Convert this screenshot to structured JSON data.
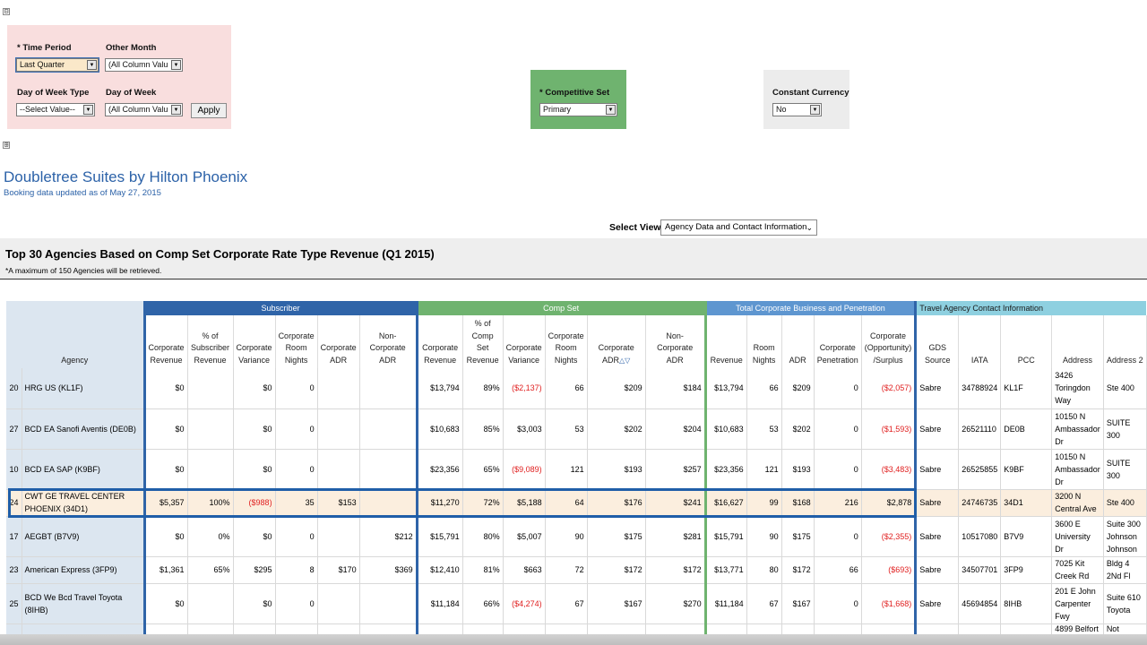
{
  "filters": {
    "time_period": {
      "label": "* Time Period",
      "value": "Last Quarter"
    },
    "other_month": {
      "label": "Other Month",
      "value": "(All Column Valu"
    },
    "dow_type": {
      "label": "Day of Week Type",
      "value": "--Select Value--"
    },
    "dow": {
      "label": "Day of Week",
      "value": "(All Column Valu"
    },
    "apply_label": "Apply",
    "competitive_set": {
      "label": "* Competitive Set",
      "value": "Primary"
    },
    "constant_currency": {
      "label": "Constant Currency",
      "value": "No"
    }
  },
  "toggles": {
    "collapse": "⊟",
    "expand": "⊞"
  },
  "page": {
    "title": "Doubletree Suites by Hilton Phoenix",
    "subtitle": "Booking data updated as of May 27, 2015",
    "view_label": "Select View",
    "view_value": "Agency Data and Contact Information"
  },
  "report": {
    "title": "Top 30 Agencies Based on Comp Set Corporate Rate Type Revenue (Q1 2015)",
    "note": "*A maximum of 150 Agencies will be retrieved."
  },
  "groups": {
    "subscriber": "Subscriber",
    "comp_set": "Comp Set",
    "total": "Total Corporate Business and Penetration",
    "travel": "Travel Agency Contact Information"
  },
  "headers": {
    "agency": "Agency",
    "sub_rev": "Corporate Revenue",
    "sub_pct": "% of Subscriber Revenue",
    "sub_var": "Corporate Variance",
    "sub_rn": "Corporate Room Nights",
    "sub_adr": "Corporate ADR",
    "sub_nadr": "Non-Corporate ADR",
    "cs_rev": "Corporate Revenue",
    "cs_pct": "% of Comp Set Revenue",
    "cs_var": "Corporate Variance",
    "cs_rn": "Corporate Room Nights",
    "cs_adr": "Corporate ADR",
    "cs_nadr": "Non-Corporate ADR",
    "t_rev": "Revenue",
    "t_rn": "Room Nights",
    "t_adr": "ADR",
    "t_pen": "Corporate Penetration",
    "t_opp": "Corporate (Opportunity) /Surplus",
    "gds": "GDS Source",
    "iata": "IATA",
    "pcc": "PCC",
    "addr": "Address",
    "addr2": "Address 2"
  },
  "rows": [
    {
      "rank": "20",
      "agency": "HRG US (KL1F)",
      "sub_rev": "$0",
      "sub_pct": "",
      "sub_var": "$0",
      "sub_rn": "0",
      "sub_adr": "",
      "sub_nadr": "",
      "cs_rev": "$13,794",
      "cs_pct": "89%",
      "cs_var": "($2,137)",
      "cs_rn": "66",
      "cs_adr": "$209",
      "cs_nadr": "$184",
      "t_rev": "$13,794",
      "t_rn": "66",
      "t_adr": "$209",
      "t_pen": "0",
      "t_opp": "($2,057)",
      "gds": "Sabre",
      "iata": "34788924",
      "pcc": "KL1F",
      "addr": "3426 Toringdon Way",
      "addr2": "Ste 400"
    },
    {
      "rank": "27",
      "agency": "BCD EA Sanofi Aventis (DE0B)",
      "sub_rev": "$0",
      "sub_pct": "",
      "sub_var": "$0",
      "sub_rn": "0",
      "sub_adr": "",
      "sub_nadr": "",
      "cs_rev": "$10,683",
      "cs_pct": "85%",
      "cs_var": "$3,003",
      "cs_rn": "53",
      "cs_adr": "$202",
      "cs_nadr": "$204",
      "t_rev": "$10,683",
      "t_rn": "53",
      "t_adr": "$202",
      "t_pen": "0",
      "t_opp": "($1,593)",
      "gds": "Sabre",
      "iata": "26521110",
      "pcc": "DE0B",
      "addr": "10150 N Ambassador Dr",
      "addr2": "SUITE 300"
    },
    {
      "rank": "10",
      "agency": "BCD EA SAP (K9BF)",
      "sub_rev": "$0",
      "sub_pct": "",
      "sub_var": "$0",
      "sub_rn": "0",
      "sub_adr": "",
      "sub_nadr": "",
      "cs_rev": "$23,356",
      "cs_pct": "65%",
      "cs_var": "($9,089)",
      "cs_rn": "121",
      "cs_adr": "$193",
      "cs_nadr": "$257",
      "t_rev": "$23,356",
      "t_rn": "121",
      "t_adr": "$193",
      "t_pen": "0",
      "t_opp": "($3,483)",
      "gds": "Sabre",
      "iata": "26525855",
      "pcc": "K9BF",
      "addr": "10150 N Ambassador Dr",
      "addr2": "SUITE 300"
    },
    {
      "rank": "24",
      "agency": "CWT GE TRAVEL CENTER PHOENIX (34D1)",
      "sub_rev": "$5,357",
      "sub_pct": "100%",
      "sub_var": "($988)",
      "sub_rn": "35",
      "sub_adr": "$153",
      "sub_nadr": "",
      "cs_rev": "$11,270",
      "cs_pct": "72%",
      "cs_var": "$5,188",
      "cs_rn": "64",
      "cs_adr": "$176",
      "cs_nadr": "$241",
      "t_rev": "$16,627",
      "t_rn": "99",
      "t_adr": "$168",
      "t_pen": "216",
      "t_opp": "$2,878",
      "gds": "Sabre",
      "iata": "24746735",
      "pcc": "34D1",
      "addr": "3200 N Central Ave",
      "addr2": "Ste 400"
    },
    {
      "rank": "17",
      "agency": "AEGBT (B7V9)",
      "sub_rev": "$0",
      "sub_pct": "0%",
      "sub_var": "$0",
      "sub_rn": "0",
      "sub_adr": "",
      "sub_nadr": "$212",
      "cs_rev": "$15,791",
      "cs_pct": "80%",
      "cs_var": "$5,007",
      "cs_rn": "90",
      "cs_adr": "$175",
      "cs_nadr": "$281",
      "t_rev": "$15,791",
      "t_rn": "90",
      "t_adr": "$175",
      "t_pen": "0",
      "t_opp": "($2,355)",
      "gds": "Sabre",
      "iata": "10517080",
      "pcc": "B7V9",
      "addr": "3600 E University Dr",
      "addr2": "Suite 300 Johnson Johnson"
    },
    {
      "rank": "23",
      "agency": "American Express (3FP9)",
      "sub_rev": "$1,361",
      "sub_pct": "65%",
      "sub_var": "$295",
      "sub_rn": "8",
      "sub_adr": "$170",
      "sub_nadr": "$369",
      "cs_rev": "$12,410",
      "cs_pct": "81%",
      "cs_var": "$663",
      "cs_rn": "72",
      "cs_adr": "$172",
      "cs_nadr": "$172",
      "t_rev": "$13,771",
      "t_rn": "80",
      "t_adr": "$172",
      "t_pen": "66",
      "t_opp": "($693)",
      "gds": "Sabre",
      "iata": "34507701",
      "pcc": "3FP9",
      "addr": "7025 Kit Creek Rd",
      "addr2": "Bldg 4 2Nd Fl"
    },
    {
      "rank": "25",
      "agency": "BCD We Bcd Travel Toyota (8IHB)",
      "sub_rev": "$0",
      "sub_pct": "",
      "sub_var": "$0",
      "sub_rn": "0",
      "sub_adr": "",
      "sub_nadr": "",
      "cs_rev": "$11,184",
      "cs_pct": "66%",
      "cs_var": "($4,274)",
      "cs_rn": "67",
      "cs_adr": "$167",
      "cs_nadr": "$270",
      "t_rev": "$11,184",
      "t_rn": "67",
      "t_adr": "$167",
      "t_pen": "0",
      "t_opp": "($1,668)",
      "gds": "Sabre",
      "iata": "45694854",
      "pcc": "8IHB",
      "addr": "201 E John Carpenter Fwy",
      "addr2": "Suite 610 Toyota"
    }
  ],
  "partial_row": {
    "addr": "4899 Belfort",
    "addr2": "Not"
  }
}
